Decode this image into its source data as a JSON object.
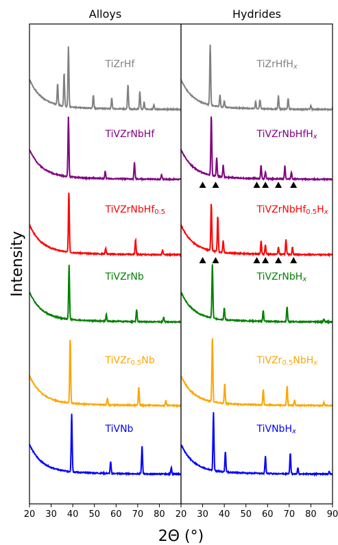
{
  "chart_data": {
    "type": "line",
    "ylabel": "Intensity",
    "xlabel": "2Θ (°)",
    "panels": [
      {
        "title": "Alloys",
        "xlim": [
          20,
          90
        ],
        "xticks": [
          20,
          30,
          40,
          50,
          60,
          70,
          80
        ],
        "series": [
          {
            "label": "TiZrHf",
            "label_parts": [
              [
                "TiZrHf",
                ""
              ]
            ],
            "color": "#808080",
            "peaks": [
              [
                33,
                0.35
              ],
              [
                36,
                0.55
              ],
              [
                38,
                1.0
              ],
              [
                49.5,
                0.22
              ],
              [
                58,
                0.18
              ],
              [
                65.5,
                0.4
              ],
              [
                71,
                0.3
              ],
              [
                73,
                0.12
              ],
              [
                77.5,
                0.08
              ]
            ]
          },
          {
            "label": "TiVZrNbHf",
            "label_parts": [
              [
                "TiVZrNbHf",
                ""
              ]
            ],
            "color": "#800080",
            "peaks": [
              [
                38,
                1.0
              ],
              [
                55,
                0.12
              ],
              [
                68.5,
                0.28
              ],
              [
                81,
                0.08
              ]
            ]
          },
          {
            "label": "TiVZrNbHf0.5",
            "label_parts": [
              [
                "TiVZrNbHf",
                ""
              ],
              [
                "0.5",
                "sub"
              ]
            ],
            "color": "#ff0000",
            "peaks": [
              [
                38.2,
                1.0
              ],
              [
                55.2,
                0.1
              ],
              [
                69,
                0.25
              ],
              [
                81.5,
                0.08
              ]
            ]
          },
          {
            "label": "TiVZrNb",
            "label_parts": [
              [
                "TiVZrNb",
                ""
              ]
            ],
            "color": "#008000",
            "peaks": [
              [
                38.3,
                1.0
              ],
              [
                55.5,
                0.12
              ],
              [
                69.5,
                0.22
              ],
              [
                82,
                0.08
              ]
            ]
          },
          {
            "label": "TiVZr0.5Nb",
            "label_parts": [
              [
                "TiVZr",
                ""
              ],
              [
                "0.5",
                "sub"
              ],
              [
                "Nb",
                ""
              ]
            ],
            "color": "#ffa500",
            "peaks": [
              [
                38.8,
                1.0
              ],
              [
                56,
                0.1
              ],
              [
                70.5,
                0.28
              ],
              [
                83,
                0.08
              ]
            ]
          },
          {
            "label": "TiVNb",
            "label_parts": [
              [
                "TiVNb",
                ""
              ]
            ],
            "color": "#0000ff",
            "peaks": [
              [
                39.5,
                1.0
              ],
              [
                57.5,
                0.2
              ],
              [
                72,
                0.48
              ],
              [
                85.5,
                0.12
              ]
            ]
          }
        ]
      },
      {
        "title": "Hydrides",
        "xlim": [
          20,
          90
        ],
        "xticks": [
          20,
          30,
          40,
          50,
          60,
          70,
          80,
          90
        ],
        "series": [
          {
            "label": "TiZrHfHx",
            "label_parts": [
              [
                "TiZrHfH",
                ""
              ],
              [
                "x",
                "subi"
              ]
            ],
            "color": "#808080",
            "peaks": [
              [
                33.5,
                1.0
              ],
              [
                38,
                0.2
              ],
              [
                40,
                0.1
              ],
              [
                54.5,
                0.12
              ],
              [
                56.5,
                0.15
              ],
              [
                65,
                0.22
              ],
              [
                69.5,
                0.18
              ],
              [
                80,
                0.06
              ]
            ],
            "markers": []
          },
          {
            "label": "TiVZrNbHfHx",
            "label_parts": [
              [
                "TiVZrNbHfH",
                ""
              ],
              [
                "x",
                "subi"
              ]
            ],
            "color": "#800080",
            "peaks": [
              [
                34,
                1.0
              ],
              [
                36.5,
                0.3
              ],
              [
                39.5,
                0.2
              ],
              [
                57,
                0.22
              ],
              [
                59,
                0.12
              ],
              [
                68,
                0.22
              ],
              [
                71,
                0.12
              ]
            ],
            "markers": [
              30,
              36,
              55,
              59,
              65,
              72
            ]
          },
          {
            "label": "TiVZrNbHf0.5Hx",
            "label_parts": [
              [
                "TiVZrNbHf",
                ""
              ],
              [
                "0.5",
                "sub"
              ],
              [
                "H",
                ""
              ],
              [
                "x",
                "subi"
              ]
            ],
            "color": "#ff0000",
            "peaks": [
              [
                34,
                0.8
              ],
              [
                37,
                0.6
              ],
              [
                39.5,
                0.2
              ],
              [
                57,
                0.22
              ],
              [
                59,
                0.15
              ],
              [
                65,
                0.12
              ],
              [
                68.5,
                0.25
              ],
              [
                71.5,
                0.12
              ]
            ],
            "markers": [
              30,
              36,
              55,
              59,
              65,
              72
            ]
          },
          {
            "label": "TiVZrNbHx",
            "label_parts": [
              [
                "TiVZrNbH",
                ""
              ],
              [
                "x",
                "subi"
              ]
            ],
            "color": "#008000",
            "peaks": [
              [
                34.5,
                1.0
              ],
              [
                40,
                0.22
              ],
              [
                58,
                0.2
              ],
              [
                69,
                0.28
              ],
              [
                86,
                0.05
              ]
            ],
            "markers": []
          },
          {
            "label": "TiVZr0.5NbHx",
            "label_parts": [
              [
                "TiVZr",
                ""
              ],
              [
                "0.5",
                "sub"
              ],
              [
                "NbH",
                ""
              ],
              [
                "x",
                "subi"
              ]
            ],
            "color": "#ffa500",
            "peaks": [
              [
                34.5,
                1.0
              ],
              [
                40.2,
                0.3
              ],
              [
                58,
                0.25
              ],
              [
                69,
                0.3
              ],
              [
                72.5,
                0.08
              ],
              [
                86,
                0.05
              ]
            ],
            "markers": []
          },
          {
            "label": "TiVNbHx",
            "label_parts": [
              [
                "TiVNbH",
                ""
              ],
              [
                "x",
                "subi"
              ]
            ],
            "color": "#0000ff",
            "peaks": [
              [
                35,
                1.0
              ],
              [
                40.5,
                0.35
              ],
              [
                59,
                0.3
              ],
              [
                70.5,
                0.35
              ],
              [
                74,
                0.1
              ],
              [
                88.5,
                0.05
              ]
            ],
            "markers": []
          }
        ]
      }
    ]
  }
}
